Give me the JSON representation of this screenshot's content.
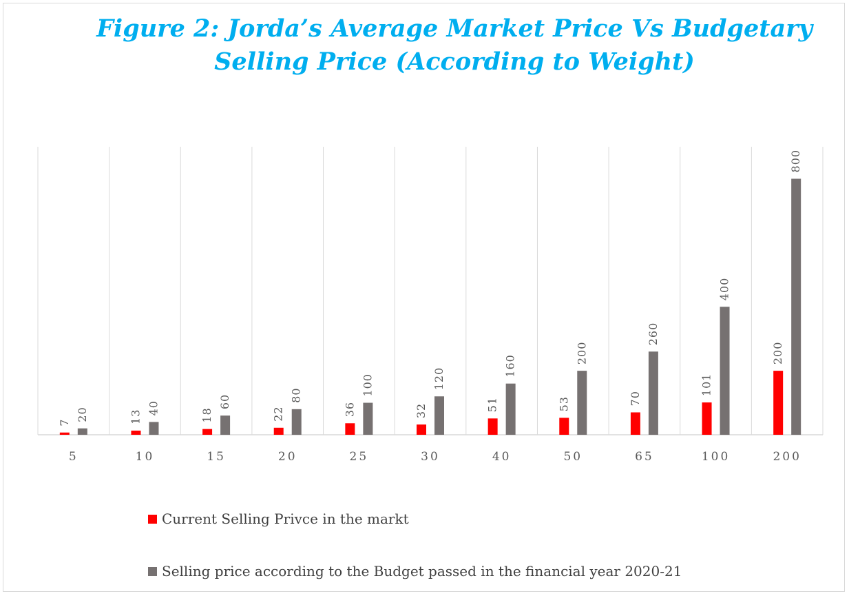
{
  "chart_data": {
    "type": "bar",
    "title": "Figure 2: Jorda’s Average Market Price Vs Budgetary Selling Price (According to Weight)",
    "categories": [
      "5",
      "10",
      "15",
      "20",
      "25",
      "30",
      "40",
      "50",
      "65",
      "100",
      "200"
    ],
    "series": [
      {
        "name": "Current Selling Privce in the markt",
        "color": "#ff0000",
        "values": [
          7,
          13,
          18,
          22,
          36,
          32,
          51,
          53,
          70,
          101,
          200
        ]
      },
      {
        "name": "Selling price according to the Budget passed in the financial year 2020-21",
        "color": "#767171",
        "values": [
          20,
          40,
          60,
          80,
          100,
          120,
          160,
          200,
          260,
          400,
          800
        ]
      }
    ],
    "ylim": [
      0,
      900
    ],
    "grid": "vertical",
    "legend_position": "bottom-left",
    "data_labels": true
  }
}
